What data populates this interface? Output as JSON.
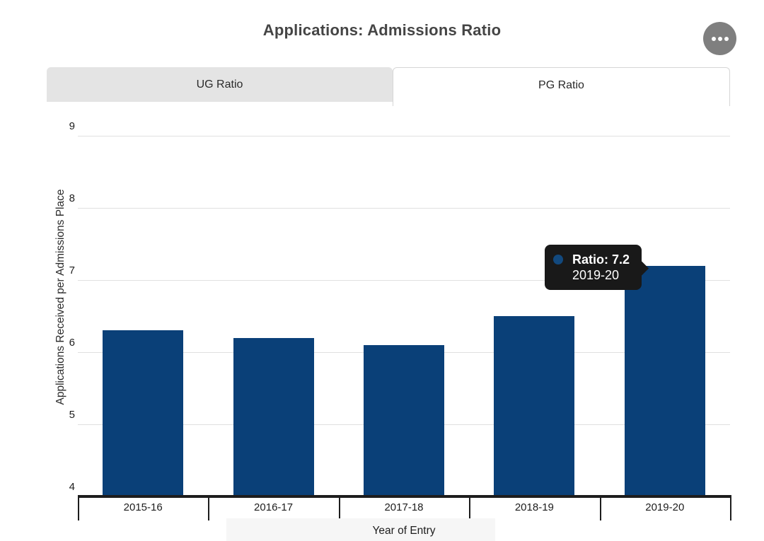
{
  "header": {
    "title": "Applications: Admissions Ratio",
    "menu_icon": "ellipsis-icon"
  },
  "tabs": [
    {
      "label": "UG Ratio",
      "active": false
    },
    {
      "label": "PG Ratio",
      "active": true
    }
  ],
  "tooltip": {
    "label": "Ratio: 7.2",
    "category": "2019-20",
    "dot_color": "#12497e",
    "background": "#191919"
  },
  "chart_data": {
    "type": "bar",
    "title": "Applications: Admissions Ratio",
    "categories": [
      "2015-16",
      "2016-17",
      "2017-18",
      "2018-19",
      "2019-20"
    ],
    "values": [
      6.3,
      6.2,
      6.1,
      6.5,
      7.2
    ],
    "xlabel": "Year of Entry",
    "ylabel": "Applications Received per Admissions Place",
    "ylim": [
      4,
      9
    ],
    "yticks": [
      4,
      5,
      6,
      7,
      8,
      9
    ],
    "bar_color": "#0a4078",
    "grid": true,
    "legend": "none",
    "highlighted": {
      "category": "2019-20",
      "value": 7.2
    }
  },
  "colors": {
    "bar": "#0a4078",
    "gridline": "#e0e0e0",
    "axis": "#1d1d1d",
    "tab_inactive_bg": "#e4e4e4",
    "tooltip_bg": "#191919",
    "menu_button_bg": "#7f7f7f",
    "title_text": "#454545"
  }
}
